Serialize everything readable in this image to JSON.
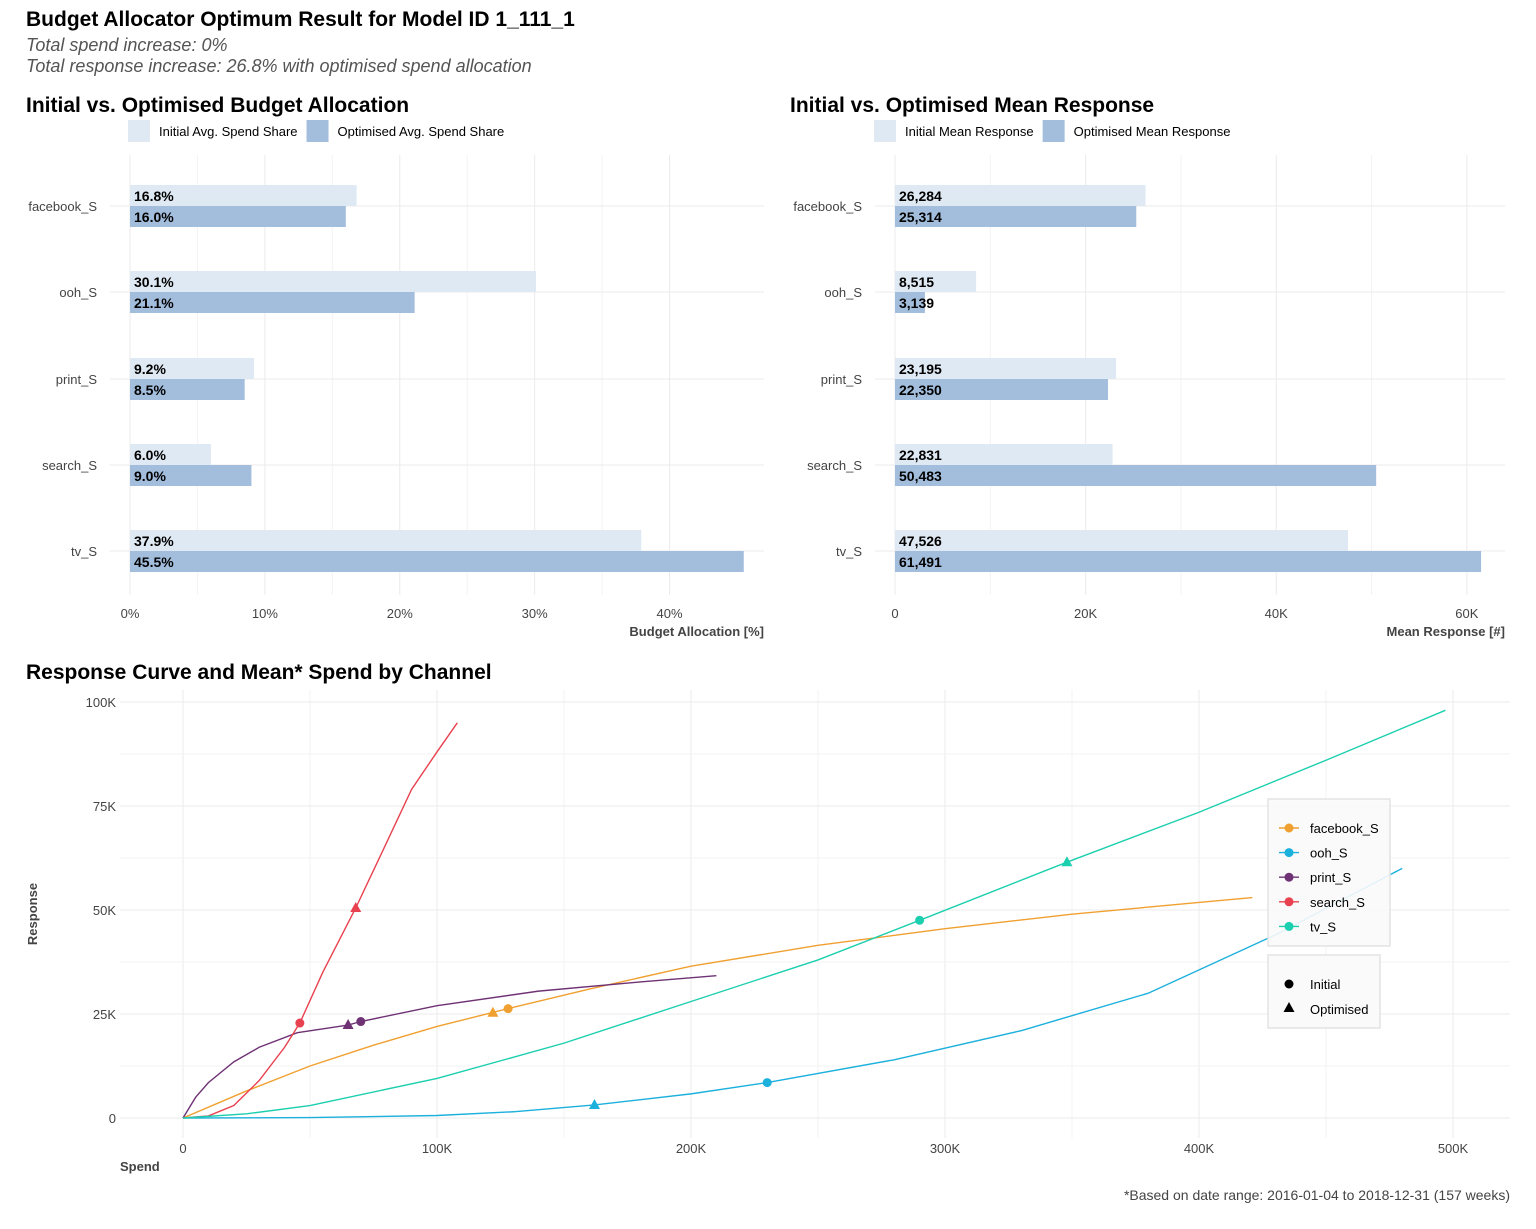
{
  "title": "Budget Allocator Optimum Result for Model ID 1_111_1",
  "subtitle_lines": [
    "Total spend increase: 0%",
    "Total response increase: 26.8% with optimised spend allocation"
  ],
  "footnote": "*Based on date range: 2016-01-04 to 2018-12-31 (157 weeks)",
  "colors": {
    "initial_bar": "#dfe9f3",
    "optimised_bar": "#a3bedd",
    "grid": "#ebebeb"
  },
  "chart_data": [
    {
      "type": "bar",
      "orientation": "horizontal",
      "title": "Initial vs. Optimised Budget Allocation",
      "xlabel": "Budget Allocation [%]",
      "ylabel": "",
      "xlim": [
        0,
        47
      ],
      "x_ticks": [
        "0%",
        "10%",
        "20%",
        "30%",
        "40%"
      ],
      "x_tick_values": [
        0,
        10,
        20,
        30,
        40
      ],
      "legend_position": "top",
      "grid": true,
      "categories": [
        "facebook_S",
        "ooh_S",
        "print_S",
        "search_S",
        "tv_S"
      ],
      "series": [
        {
          "name": "Initial Avg. Spend Share",
          "values": [
            16.8,
            30.1,
            9.2,
            6.0,
            37.9
          ],
          "labels": [
            "16.8%",
            "30.1%",
            "9.2%",
            "6.0%",
            "37.9%"
          ]
        },
        {
          "name": "Optimised Avg. Spend Share",
          "values": [
            16.0,
            21.1,
            8.5,
            9.0,
            45.5
          ],
          "labels": [
            "16.0%",
            "21.1%",
            "8.5%",
            "9.0%",
            "45.5%"
          ]
        }
      ]
    },
    {
      "type": "bar",
      "orientation": "horizontal",
      "title": "Initial vs. Optimised Mean Response",
      "xlabel": "Mean Response [#]",
      "ylabel": "",
      "xlim": [
        0,
        64000
      ],
      "x_ticks": [
        "0",
        "20K",
        "40K",
        "60K"
      ],
      "x_tick_values": [
        0,
        20000,
        40000,
        60000
      ],
      "legend_position": "top",
      "grid": true,
      "categories": [
        "facebook_S",
        "ooh_S",
        "print_S",
        "search_S",
        "tv_S"
      ],
      "series": [
        {
          "name": "Initial Mean Response",
          "values": [
            26284,
            8515,
            23195,
            22831,
            47526
          ],
          "labels": [
            "26,284",
            "8,515",
            "23,195",
            "22,831",
            "47,526"
          ]
        },
        {
          "name": "Optimised Mean Response",
          "values": [
            25314,
            3139,
            22350,
            50483,
            61491
          ],
          "labels": [
            "25,314",
            "3,139",
            "22,350",
            "50,483",
            "61,491"
          ]
        }
      ]
    },
    {
      "type": "line",
      "title": "Response Curve and Mean* Spend by Channel",
      "xlabel": "Spend",
      "ylabel": "Response",
      "xlim": [
        -25000,
        520000
      ],
      "ylim": [
        -4000,
        103000
      ],
      "x_ticks": [
        "0",
        "100K",
        "200K",
        "300K",
        "400K",
        "500K"
      ],
      "x_tick_values": [
        0,
        100000,
        200000,
        300000,
        400000,
        500000
      ],
      "y_ticks": [
        "0",
        "25K",
        "50K",
        "75K",
        "100K"
      ],
      "y_tick_values": [
        0,
        25000,
        50000,
        75000,
        100000
      ],
      "grid": true,
      "legend_position": "right",
      "shape_legend": [
        {
          "label": "Initial",
          "shape": "circle"
        },
        {
          "label": "Optimised",
          "shape": "triangle"
        }
      ],
      "series": [
        {
          "name": "facebook_S",
          "color": "#f0a030",
          "x": [
            0,
            25000,
            50000,
            75000,
            100000,
            128000,
            160000,
            200000,
            250000,
            300000,
            350000,
            421000
          ],
          "y": [
            0,
            6500,
            12500,
            17500,
            22000,
            26300,
            31000,
            36500,
            41500,
            45500,
            49000,
            53000
          ],
          "initial": [
            128000,
            26284
          ],
          "optimised": [
            122000,
            25314
          ]
        },
        {
          "name": "ooh_S",
          "color": "#1cb0dd",
          "x": [
            0,
            50000,
            100000,
            130000,
            162000,
            200000,
            230000,
            280000,
            330000,
            380000,
            430000,
            480000
          ],
          "y": [
            0,
            100,
            600,
            1500,
            3139,
            5800,
            8515,
            14000,
            21000,
            30000,
            44000,
            60000
          ],
          "initial": [
            230000,
            8515
          ],
          "optimised": [
            162000,
            3139
          ]
        },
        {
          "name": "print_S",
          "color": "#6f3275",
          "x": [
            0,
            5000,
            10000,
            20000,
            30000,
            45000,
            65000,
            70000,
            100000,
            140000,
            180000,
            210000
          ],
          "y": [
            0,
            5000,
            8500,
            13500,
            17000,
            20500,
            22350,
            23195,
            27000,
            30500,
            32700,
            34200
          ],
          "initial": [
            70000,
            23195
          ],
          "optimised": [
            65000,
            22350
          ]
        },
        {
          "name": "search_S",
          "color": "#e8414f",
          "x": [
            0,
            10000,
            20000,
            30000,
            40000,
            46000,
            55000,
            68000,
            80000,
            90000,
            100000,
            108000
          ],
          "y": [
            0,
            500,
            3000,
            9000,
            17000,
            22831,
            35000,
            50483,
            66000,
            79000,
            88000,
            95000
          ],
          "initial": [
            46000,
            22831
          ],
          "optimised": [
            68000,
            50483
          ]
        },
        {
          "name": "tv_S",
          "color": "#1ccfaf",
          "x": [
            0,
            25000,
            50000,
            100000,
            150000,
            200000,
            250000,
            290000,
            348000,
            400000,
            450000,
            497000
          ],
          "y": [
            0,
            1000,
            3000,
            9500,
            18000,
            28000,
            38000,
            47526,
            61491,
            73500,
            86000,
            98000
          ],
          "initial": [
            290000,
            47526
          ],
          "optimised": [
            348000,
            61491
          ]
        }
      ]
    }
  ]
}
